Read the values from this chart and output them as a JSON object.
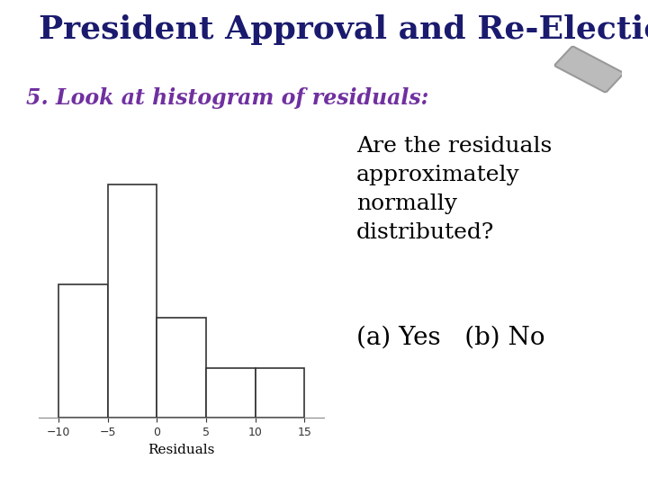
{
  "title": "President Approval and Re-Election",
  "subtitle": "5. Look at histogram of residuals:",
  "xlabel": "Residuals",
  "bar_edges": [
    -10,
    -5,
    0,
    5,
    10,
    15
  ],
  "bar_heights": [
    4,
    7,
    3,
    1.5,
    1.5
  ],
  "bar_facecolor": "white",
  "bar_edgecolor": "#333333",
  "xlim": [
    -12,
    17
  ],
  "ylim": [
    0,
    8.0
  ],
  "xticks": [
    -10,
    -5,
    0,
    5,
    10,
    15
  ],
  "yticks": [],
  "annotation_text": "Are the residuals\napproximately\nnormally\ndistributed?",
  "answer_text": "(a) Yes   (b) No",
  "title_color": "#1a1a6e",
  "subtitle_color": "#7030a0",
  "annotation_color": "#000000",
  "background_color": "#ffffff",
  "title_fontsize": 26,
  "subtitle_fontsize": 17,
  "annotation_fontsize": 18,
  "answer_fontsize": 20,
  "xlabel_fontsize": 11
}
